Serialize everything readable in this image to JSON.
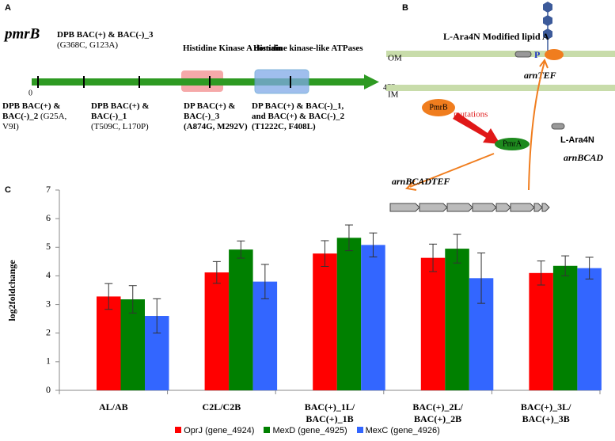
{
  "panel_a": {
    "letter": "A",
    "gene": "pmrB",
    "start": "0",
    "end": "477",
    "sites": [
      {
        "label": "DPB BAC(+) &\nBAC(-)_2",
        "mutation": "(G25A,\nV9I)"
      },
      {
        "label": "DPB BAC(+) & BAC(-)_3",
        "mutation": "(G368C, G123A)"
      },
      {
        "label": "DPB BAC(+) &\nBAC(-)_1",
        "mutation": "(T509C, L170P)"
      },
      {
        "label": "DP BAC(+) &\nBAC(-)_3",
        "mutation": "(A874G, M292V)"
      },
      {
        "label": "DP BAC(+) & BAC(-)_1,\nand BAC(+) & BAC(-)_2",
        "mutation": "(T1222C, F408L)"
      }
    ],
    "domains": [
      "Histidine Kinase A domain",
      "Histidine kinase-like ATPases"
    ]
  },
  "panel_b": {
    "letter": "B",
    "title": "L-Ara4N Modified lipid A",
    "om": "OM",
    "im": "IM",
    "phosphate": "P",
    "pmrb": "PmrB",
    "mutations": "mutations",
    "pmra": "PmrA",
    "ara4n": "L-Ara4N",
    "arntef": "arnTEF",
    "arnbcad": "arnBCAD",
    "operon": "arnBCADTEF"
  },
  "chart_data": {
    "type": "bar",
    "letter": "C",
    "y_label": "log2foldchange",
    "categories": [
      "AL/AB",
      "C2L/C2B",
      "BAC(+)_1L/\nBAC(+)_1B",
      "BAC(+)_2L/\nBAC(+)_2B",
      "BAC(+)_3L/\nBAC(+)_3B"
    ],
    "series": [
      {
        "name": "OprJ (gene_4924)",
        "color": "#ff0000",
        "values": [
          3.28,
          4.12,
          4.78,
          4.63,
          4.1
        ],
        "errors": [
          0.45,
          0.38,
          0.45,
          0.48,
          0.42
        ]
      },
      {
        "name": "MexD (gene_4925)",
        "color": "#008000",
        "values": [
          3.18,
          4.92,
          5.33,
          4.95,
          4.35
        ],
        "errors": [
          0.48,
          0.3,
          0.45,
          0.5,
          0.35
        ]
      },
      {
        "name": "MexC (gene_4926)",
        "color": "#3366ff",
        "values": [
          2.6,
          3.8,
          5.08,
          3.92,
          4.27
        ],
        "errors": [
          0.6,
          0.6,
          0.42,
          0.88,
          0.38
        ]
      }
    ],
    "ylim": [
      0,
      7
    ],
    "yticks": [
      0,
      1,
      2,
      3,
      4,
      5,
      6,
      7
    ],
    "grid": false,
    "legend": "bottom"
  }
}
